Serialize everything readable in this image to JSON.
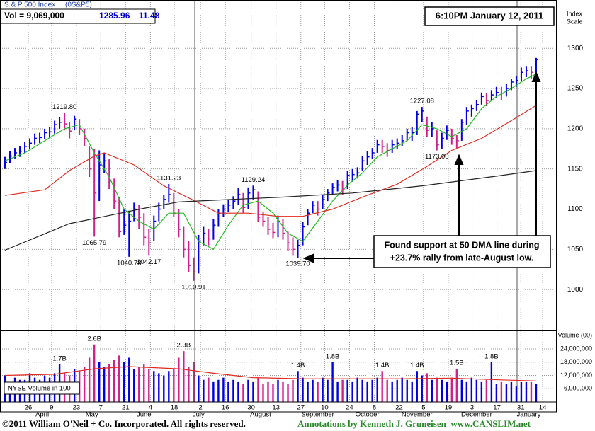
{
  "header": {
    "name": "S & P 500 Index",
    "symbol": "(0S&P5)",
    "volume": "Vol = 9,069,000",
    "last": "1285.96",
    "change": "11.48",
    "timestamp": "6:10PM January 12, 2011",
    "scale_label": [
      "Index",
      "Scale"
    ]
  },
  "note": [
    "Found support at 50 DMA line during",
    "+23.7% rally from late-August low."
  ],
  "footer": {
    "copyright": "©2011 William O'Neil + Co. Incorporated. All rights reserved.",
    "credit": "Annotations by Kenneth J. Gruneisen  www.CANSLIM.net"
  },
  "chart_data": [
    {
      "type": "ohlc",
      "close": [
        1158,
        1166,
        1170,
        1172,
        1178,
        1182,
        1188,
        1189,
        1195,
        1196,
        1205,
        1208,
        1206,
        1197,
        1212,
        1200,
        1188,
        1150,
        1120,
        1155,
        1160,
        1135,
        1110,
        1072,
        1080,
        1085,
        1100,
        1090,
        1065,
        1058,
        1085,
        1100,
        1112,
        1118,
        1095,
        1075,
        1050,
        1030,
        1022,
        1060,
        1070,
        1063,
        1080,
        1095,
        1100,
        1105,
        1110,
        1118,
        1102,
        1120,
        1124,
        1090,
        1085,
        1075,
        1071,
        1085,
        1070,
        1058,
        1050,
        1055,
        1078,
        1095,
        1105,
        1100,
        1112,
        1120,
        1127,
        1130,
        1125,
        1142,
        1143,
        1145,
        1160,
        1165,
        1170,
        1180,
        1178,
        1173,
        1180,
        1182,
        1185,
        1195,
        1195,
        1218,
        1222,
        1198,
        1200,
        1180,
        1188,
        1198,
        1188,
        1185,
        1208,
        1222,
        1225,
        1230,
        1240,
        1235,
        1242,
        1245,
        1244,
        1250,
        1258,
        1260,
        1270,
        1272,
        1270,
        1285.96
      ],
      "high": [
        1165,
        1172,
        1176,
        1178,
        1184,
        1188,
        1194,
        1195,
        1200,
        1202,
        1210,
        1214,
        1219.8,
        1208,
        1216,
        1212,
        1200,
        1178,
        1175,
        1173,
        1170,
        1162,
        1138,
        1115,
        1100,
        1098,
        1108,
        1105,
        1095,
        1075,
        1092,
        1108,
        1118,
        1131.23,
        1120,
        1100,
        1078,
        1060,
        1040,
        1068,
        1078,
        1075,
        1088,
        1100,
        1106,
        1112,
        1116,
        1126,
        1120,
        1127,
        1129.24,
        1122,
        1096,
        1090,
        1083,
        1092,
        1088,
        1072,
        1065,
        1062,
        1084,
        1100,
        1110,
        1110,
        1118,
        1125,
        1132,
        1136,
        1135,
        1148,
        1150,
        1152,
        1166,
        1172,
        1176,
        1186,
        1186,
        1182,
        1186,
        1188,
        1192,
        1200,
        1202,
        1222,
        1227.08,
        1215,
        1208,
        1198,
        1195,
        1204,
        1200,
        1192,
        1212,
        1227,
        1230,
        1236,
        1245,
        1244,
        1248,
        1252,
        1252,
        1256,
        1262,
        1266,
        1276,
        1278,
        1278,
        1288
      ],
      "low": [
        1150,
        1157,
        1163,
        1165,
        1170,
        1175,
        1180,
        1182,
        1187,
        1188,
        1194,
        1200,
        1198,
        1188,
        1198,
        1192,
        1178,
        1140,
        1065.79,
        1110,
        1145,
        1125,
        1100,
        1065,
        1068,
        1040.78,
        1085,
        1075,
        1055,
        1042.17,
        1060,
        1085,
        1100,
        1108,
        1090,
        1065,
        1040,
        1022,
        1010.91,
        1020,
        1055,
        1055,
        1062,
        1078,
        1090,
        1096,
        1100,
        1105,
        1095,
        1100,
        1112,
        1084,
        1078,
        1068,
        1064,
        1065,
        1062,
        1048,
        1042,
        1039.7,
        1055,
        1080,
        1095,
        1092,
        1100,
        1110,
        1118,
        1122,
        1118,
        1125,
        1134,
        1138,
        1148,
        1155,
        1162,
        1170,
        1170,
        1165,
        1170,
        1175,
        1178,
        1185,
        1185,
        1192,
        1208,
        1190,
        1190,
        1173,
        1175,
        1186,
        1180,
        1176,
        1185,
        1205,
        1215,
        1222,
        1230,
        1228,
        1235,
        1238,
        1236,
        1240,
        1248,
        1252,
        1258,
        1264,
        1262,
        1270
      ],
      "up_color": "#0000e0",
      "down_color": "#d0208c",
      "lines": [
        {
          "color": "#22bb22",
          "x": [
            0,
            4,
            8,
            12,
            15,
            18,
            21,
            24,
            27,
            30,
            33,
            36,
            39,
            42,
            45,
            48,
            51,
            54,
            57,
            60,
            63,
            66,
            69,
            72,
            75,
            78,
            81,
            84,
            87,
            90,
            93,
            96,
            99,
            102,
            105,
            107
          ],
          "values": [
            1160,
            1170,
            1185,
            1200,
            1205,
            1170,
            1140,
            1100,
            1085,
            1075,
            1095,
            1095,
            1060,
            1050,
            1080,
            1105,
            1110,
            1095,
            1070,
            1060,
            1085,
            1110,
            1130,
            1145,
            1165,
            1175,
            1185,
            1205,
            1200,
            1190,
            1200,
            1225,
            1240,
            1250,
            1262,
            1268
          ]
        },
        {
          "color": "#e02a20",
          "x": [
            0,
            8,
            13,
            18,
            20,
            26,
            32,
            38,
            43,
            49,
            55,
            60,
            66,
            72,
            79,
            85,
            90,
            96,
            102,
            107
          ],
          "values": [
            1117,
            1124,
            1148,
            1166,
            1170,
            1155,
            1129,
            1111,
            1095,
            1095,
            1091,
            1091,
            1100,
            1115,
            1131,
            1153,
            1173,
            1188,
            1210,
            1229
          ]
        },
        {
          "color": "#222222",
          "x": [
            0,
            13,
            28,
            35,
            42,
            56,
            70,
            84,
            99,
            107
          ],
          "values": [
            1049,
            1082,
            1101,
            1109,
            1111,
            1115,
            1120,
            1129,
            1141,
            1148
          ]
        }
      ],
      "annotations": [
        {
          "x": 12,
          "value": 1219.8,
          "label": "1219.80"
        },
        {
          "x": 18,
          "value": 1065.79,
          "label": "1065.79"
        },
        {
          "x": 25,
          "value": 1040.78,
          "label": "1040.78"
        },
        {
          "x": 29,
          "value": 1042.17,
          "label": "1042.17"
        },
        {
          "x": 33,
          "value": 1131.23,
          "label": "1131.23"
        },
        {
          "x": 38,
          "value": 1010.91,
          "label": "1010.91"
        },
        {
          "x": 50,
          "value": 1129.24,
          "label": "1129.24"
        },
        {
          "x": 59,
          "value": 1039.7,
          "label": "1039.70"
        },
        {
          "x": 84,
          "value": 1227.08,
          "label": "1227.08"
        },
        {
          "x": 87,
          "value": 1173,
          "label": "1173.00"
        }
      ],
      "xlim": [
        -1,
        111
      ],
      "ylim": [
        950,
        1360
      ],
      "yticks": [
        1000,
        1050,
        1100,
        1150,
        1200,
        1250,
        1300
      ],
      "xticks": [
        {
          "value": 4.7,
          "label": "26"
        },
        {
          "value": 9.4,
          "label": "9"
        },
        {
          "value": 14.4,
          "label": "23"
        },
        {
          "value": 19.3,
          "label": "7"
        },
        {
          "value": 24.3,
          "label": "21"
        },
        {
          "value": 29.3,
          "label": "4"
        },
        {
          "value": 34.1,
          "label": "18"
        },
        {
          "value": 39.4,
          "label": "2"
        },
        {
          "value": 44.4,
          "label": "16"
        },
        {
          "value": 49.6,
          "label": "30"
        },
        {
          "value": 54.6,
          "label": "13"
        },
        {
          "value": 59.6,
          "label": "27"
        },
        {
          "value": 64.4,
          "label": "10"
        },
        {
          "value": 69.4,
          "label": "24"
        },
        {
          "value": 74.4,
          "label": "8"
        },
        {
          "value": 79.4,
          "label": "22"
        },
        {
          "value": 84.3,
          "label": "5"
        },
        {
          "value": 89.3,
          "label": "19"
        },
        {
          "value": 94.1,
          "label": "3"
        },
        {
          "value": 99.1,
          "label": "17"
        },
        {
          "value": 103.9,
          "label": "31"
        },
        {
          "value": 108.3,
          "label": "14"
        }
      ],
      "months": [
        {
          "value": 7.5,
          "label": "April"
        },
        {
          "value": 17.5,
          "label": "May"
        },
        {
          "value": 28,
          "label": "June"
        },
        {
          "value": 39,
          "label": "July"
        },
        {
          "value": 51.5,
          "label": "August"
        },
        {
          "value": 63,
          "label": "September"
        },
        {
          "value": 73,
          "label": "October"
        },
        {
          "value": 83,
          "label": "November"
        },
        {
          "value": 95,
          "label": "December"
        },
        {
          "value": 105.5,
          "label": "January"
        }
      ],
      "grid": true
    },
    {
      "type": "bar",
      "title": "Volume (00)",
      "label": "NYSE Volume in 100",
      "values": [
        12000000,
        9000000,
        11000000,
        10000000,
        10000000,
        13000000,
        11000000,
        10000000,
        12000000,
        11000000,
        13000000,
        17000000,
        13000000,
        12000000,
        15000000,
        14000000,
        16000000,
        20000000,
        26000000,
        18000000,
        16000000,
        17000000,
        19000000,
        21000000,
        18000000,
        20000000,
        15000000,
        16000000,
        17000000,
        15000000,
        14000000,
        13000000,
        12000000,
        14000000,
        15000000,
        20000000,
        23000000,
        16000000,
        18000000,
        12000000,
        10000000,
        11000000,
        9000000,
        10000000,
        11000000,
        9000000,
        10000000,
        9000000,
        8000000,
        10000000,
        9000000,
        11000000,
        8000000,
        9000000,
        8000000,
        10000000,
        9000000,
        8000000,
        10000000,
        14000000,
        11000000,
        9000000,
        10000000,
        9000000,
        11000000,
        10000000,
        18000000,
        9000000,
        10000000,
        10000000,
        9000000,
        11000000,
        10000000,
        9000000,
        10000000,
        11000000,
        14000000,
        10000000,
        9000000,
        10000000,
        11000000,
        10000000,
        9000000,
        14000000,
        12000000,
        13000000,
        10000000,
        11000000,
        10000000,
        9000000,
        11000000,
        15000000,
        10000000,
        9000000,
        11000000,
        10000000,
        9000000,
        10000000,
        18000000,
        8000000,
        9000000,
        8000000,
        9000000,
        7000000,
        9000000,
        9000000,
        9000000,
        8000000
      ],
      "lines": [
        {
          "color": "#e02a20",
          "x": [
            0,
            10,
            18,
            25,
            35,
            42,
            50,
            60,
            70,
            80,
            90,
            100,
            107
          ],
          "values": [
            12000000,
            12500000,
            15000000,
            16000000,
            15000000,
            13000000,
            11000000,
            10500000,
            10500000,
            10500000,
            10800000,
            10000000,
            9500000
          ]
        }
      ],
      "annotations": [
        {
          "x": 11,
          "value": 17000000,
          "label": "1.7B"
        },
        {
          "x": 18,
          "value": 26000000,
          "label": "2.6B"
        },
        {
          "x": 36,
          "value": 23000000,
          "label": "2.3B"
        },
        {
          "x": 59,
          "value": 14000000,
          "label": "1.4B"
        },
        {
          "x": 66,
          "value": 18000000,
          "label": "1.8B"
        },
        {
          "x": 76,
          "value": 14000000,
          "label": "1.4B"
        },
        {
          "x": 83,
          "value": 14000000,
          "label": "1.4B"
        },
        {
          "x": 91,
          "value": 15000000,
          "label": "1.5B"
        },
        {
          "x": 98,
          "value": 18000000,
          "label": "1.8B"
        }
      ],
      "xlim": [
        -1,
        111
      ],
      "ylim": [
        0,
        32000000
      ],
      "yticks": [
        {
          "value": 6000000,
          "label": "6,000,000"
        },
        {
          "value": 12000000,
          "label": "12,000,000"
        },
        {
          "value": 18000000,
          "label": "18,000,000"
        },
        {
          "value": 24000000,
          "label": "24,000,000"
        }
      ],
      "grid": true
    }
  ]
}
